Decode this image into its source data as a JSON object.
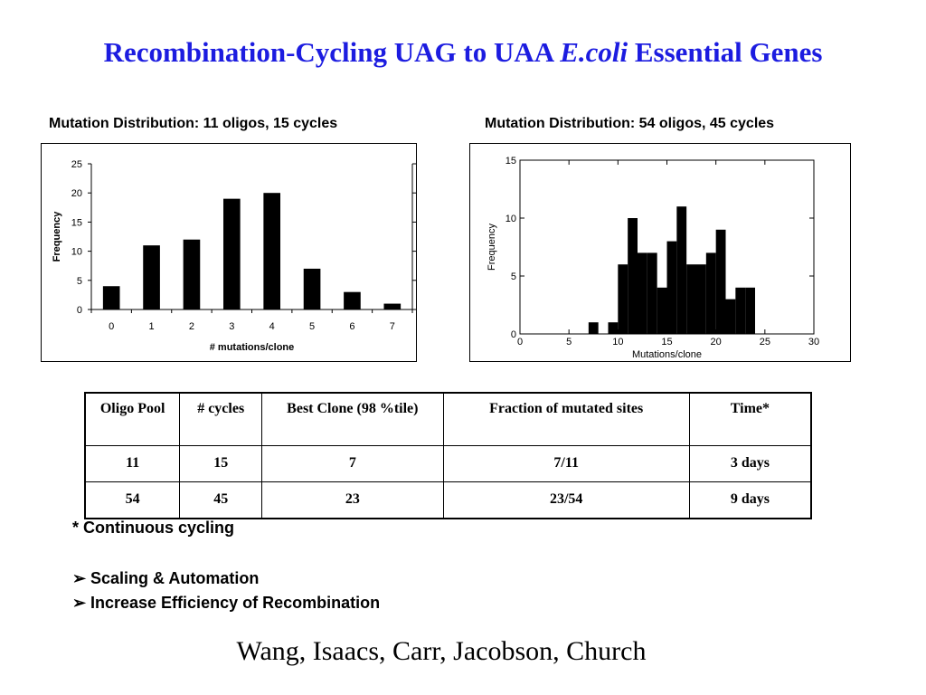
{
  "slide": {
    "title_main": "Recombination-Cycling UAG to UAA ",
    "title_italic": "E.coli",
    "title_end": " Essential Genes",
    "footnote": "* Continuous cycling",
    "bullets": [
      "Scaling & Automation",
      "Increase Efficiency of Recombination"
    ],
    "bullet_glyph": "➢",
    "authors": "Wang, Isaacs, Carr, Jacobson, Church",
    "title_color": "#1c1ce0"
  },
  "table": {
    "headers": [
      "Oligo Pool",
      "# cycles",
      "Best Clone (98 %tile)",
      "Fraction of mutated sites",
      "Time*"
    ],
    "rows": [
      [
        "11",
        "15",
        "7",
        "7/11",
        "3 days"
      ],
      [
        "54",
        "45",
        "23",
        "23/54",
        "9 days"
      ]
    ]
  },
  "chart_data": [
    {
      "type": "bar",
      "title": "Mutation Distribution:  11 oligos, 15 cycles",
      "xlabel": "# mutations/clone",
      "ylabel": "Frequency",
      "categories": [
        "0",
        "1",
        "2",
        "3",
        "4",
        "5",
        "6",
        "7"
      ],
      "values": [
        4,
        11,
        12,
        19,
        20,
        7,
        3,
        1
      ],
      "ylim": [
        0,
        25
      ],
      "yticks": [
        0,
        5,
        10,
        15,
        20,
        25
      ],
      "grid": false,
      "bar_color": "#000000"
    },
    {
      "type": "bar",
      "title": "Mutation Distribution:  54 oligos, 45 cycles",
      "xlabel": "Mutations/clone",
      "ylabel": "Frequency",
      "x": [
        7,
        9,
        10,
        11,
        12,
        13,
        14,
        15,
        16,
        17,
        18,
        19,
        20,
        21,
        22,
        23
      ],
      "values": [
        1,
        1,
        6,
        10,
        7,
        7,
        4,
        8,
        11,
        6,
        6,
        7,
        9,
        3,
        4,
        4
      ],
      "xlim": [
        0,
        30
      ],
      "xticks": [
        0,
        5,
        10,
        15,
        20,
        25,
        30
      ],
      "ylim": [
        0,
        15
      ],
      "yticks": [
        0,
        5,
        10,
        15
      ],
      "grid": false,
      "bar_color": "#000000"
    }
  ]
}
